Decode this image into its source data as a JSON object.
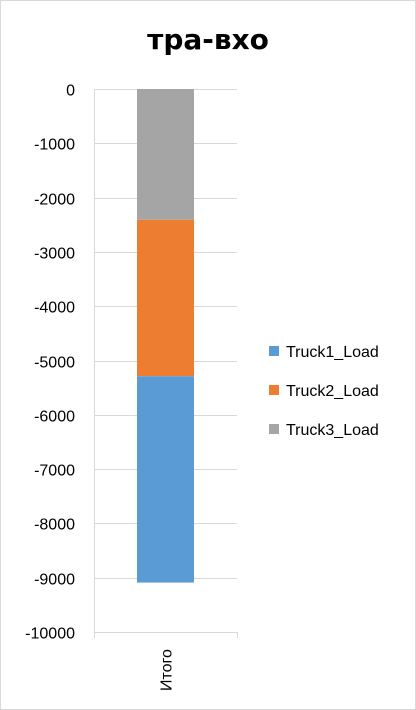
{
  "chart_data": {
    "type": "bar",
    "stacked": true,
    "title": "тра-вхо",
    "categories": [
      "Итого"
    ],
    "series": [
      {
        "name": "Truck1_Load",
        "values": [
          -3800
        ],
        "color": "#5b9bd5"
      },
      {
        "name": "Truck2_Load",
        "values": [
          -2880
        ],
        "color": "#ed7d31"
      },
      {
        "name": "Truck3_Load",
        "values": [
          -2410
        ],
        "color": "#a5a5a5"
      }
    ],
    "ylim": [
      -10000,
      0
    ],
    "yticks": [
      0,
      -1000,
      -2000,
      -3000,
      -4000,
      -5000,
      -6000,
      -7000,
      -8000,
      -9000,
      -10000
    ],
    "ytick_labels": [
      "0",
      "-1000",
      "-2000",
      "-3000",
      "-4000",
      "-5000",
      "-6000",
      "-7000",
      "-8000",
      "-9000",
      "-10000"
    ],
    "grid": true,
    "legend_position": "right",
    "xlabel": "",
    "ylabel": "",
    "gridline_color": "#d9d9d9"
  }
}
